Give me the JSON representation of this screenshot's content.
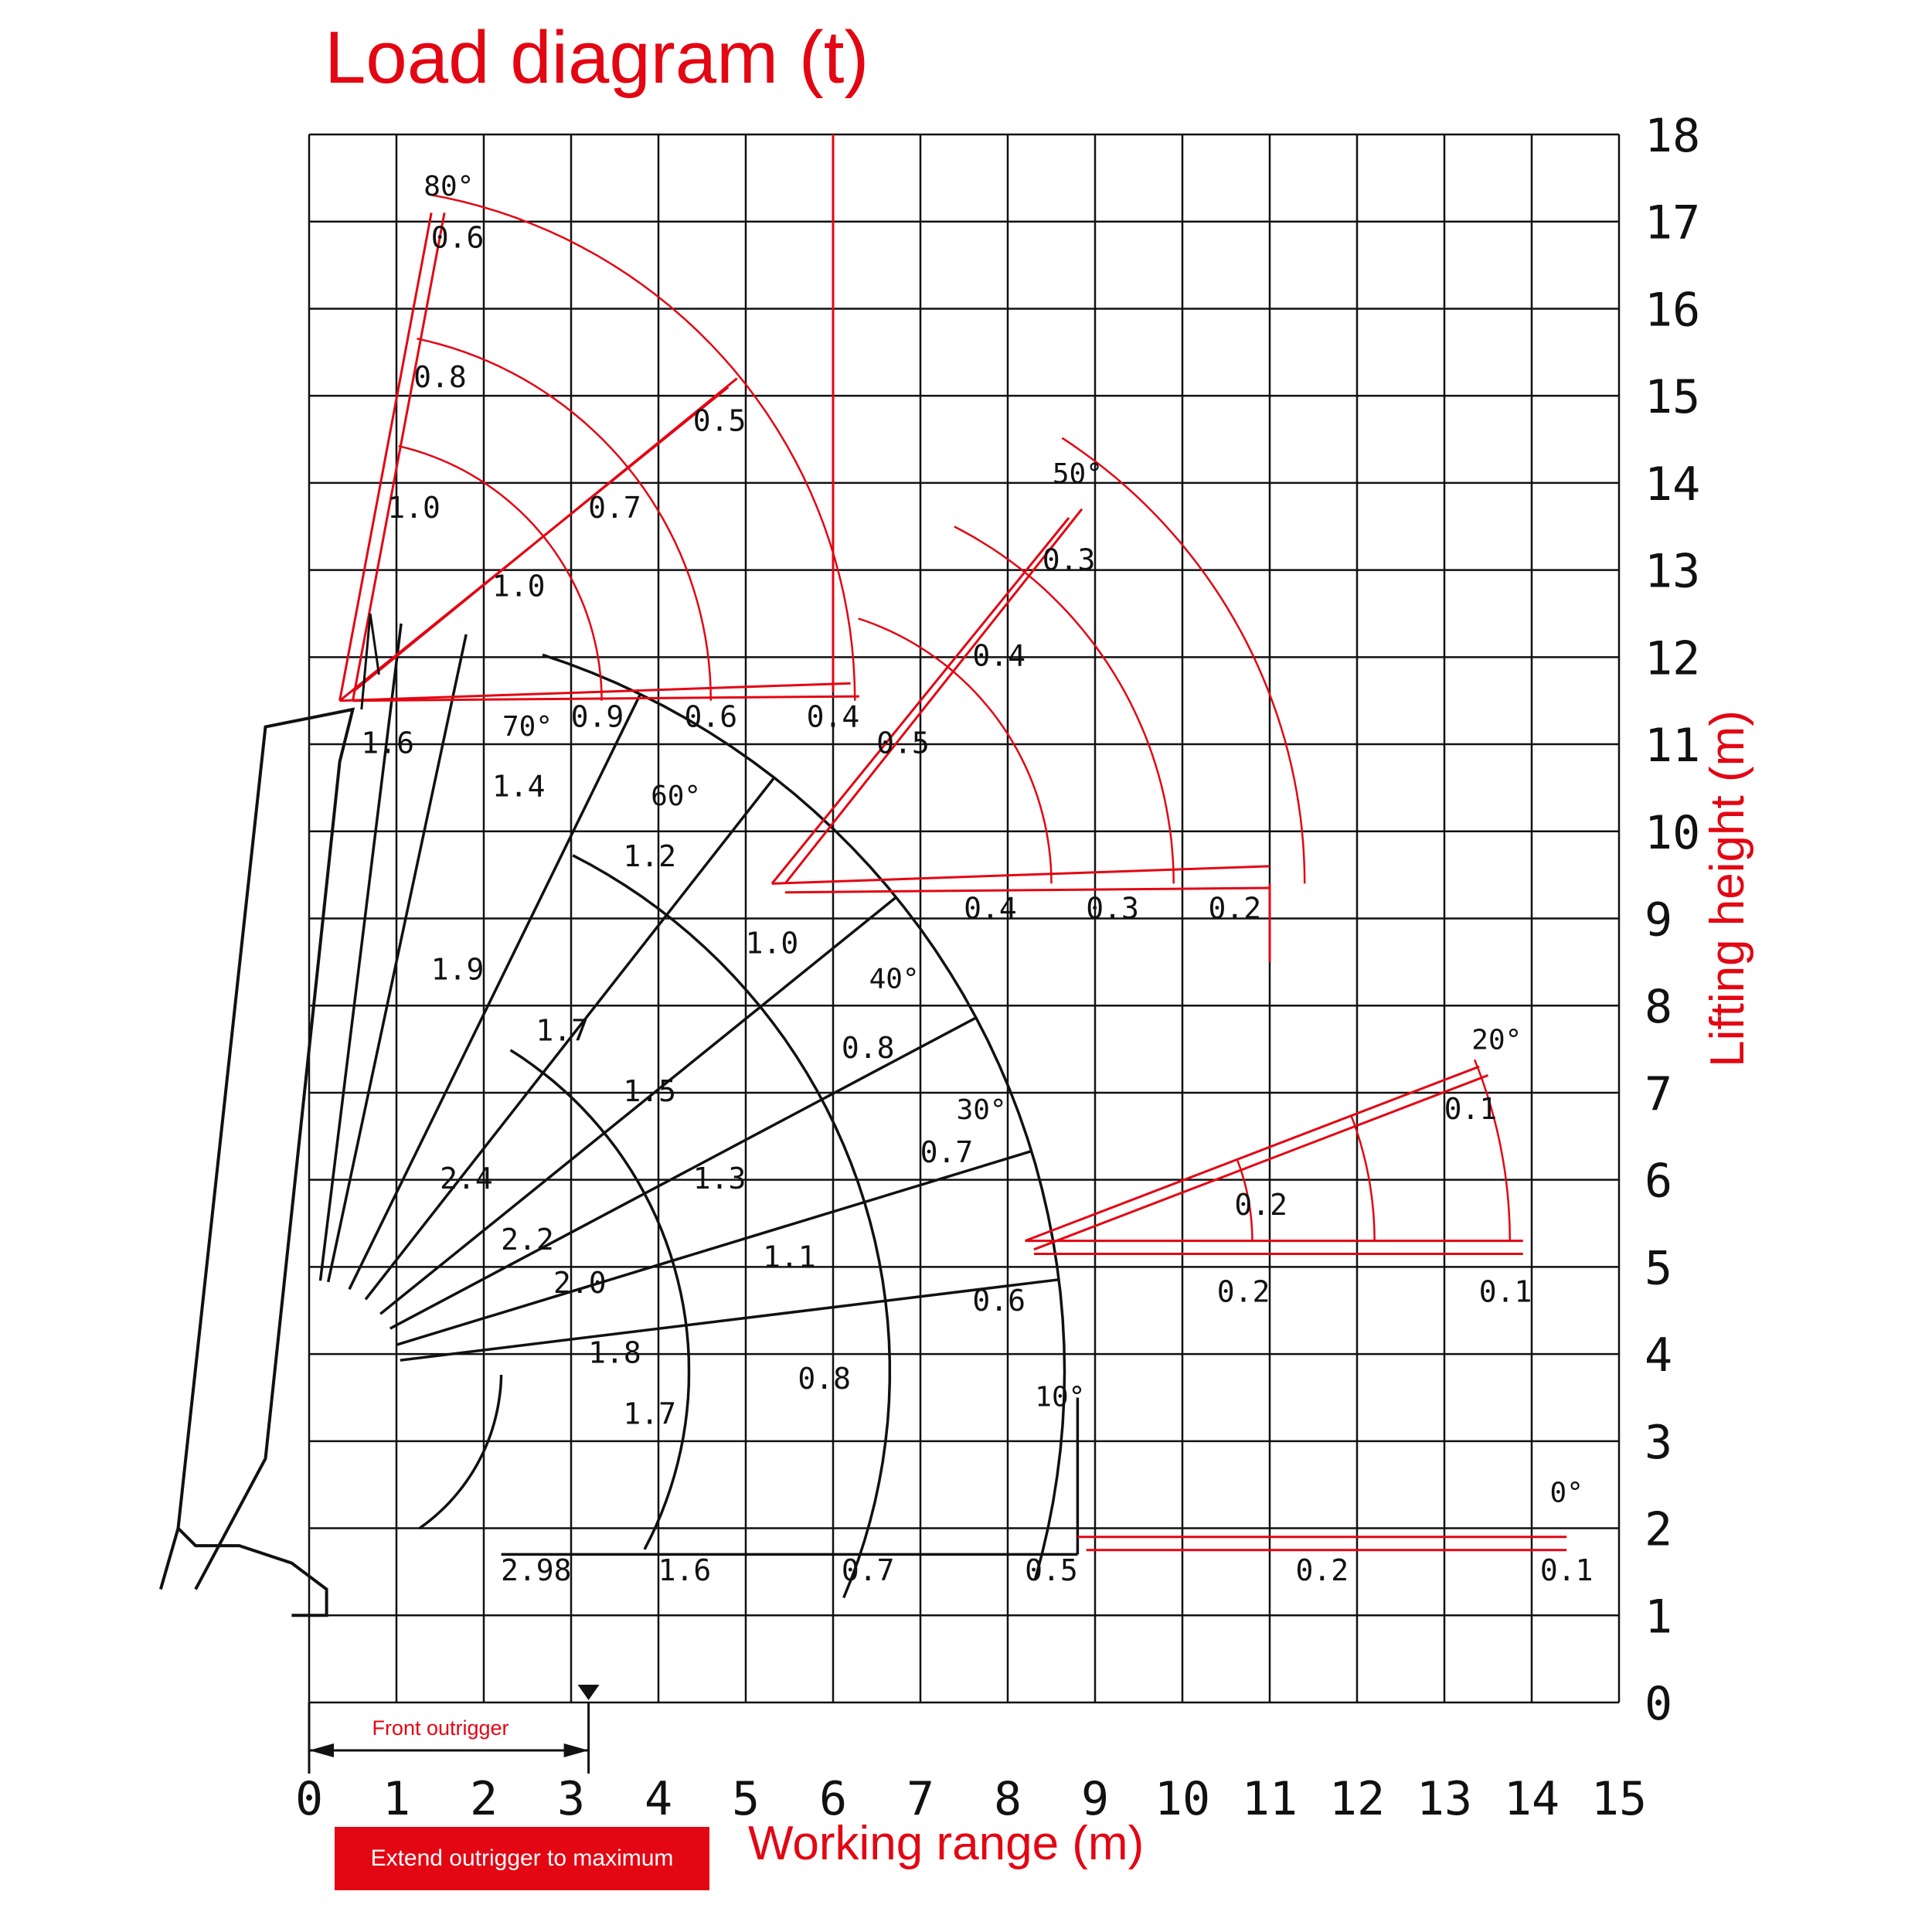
{
  "title": "Load diagram (t)",
  "xlabel": "Working range (m)",
  "ylabel": "Lifting height (m)",
  "badge": "Extend outrigger to maximum",
  "outrigger_label": "Front outrigger",
  "colors": {
    "red": "#e30613",
    "black": "#111111"
  },
  "chart_data": {
    "type": "line",
    "xlim": [
      0,
      15
    ],
    "ylim": [
      0,
      18
    ],
    "x_ticks": [
      "0",
      "1",
      "2",
      "3",
      "4",
      "5",
      "6",
      "7",
      "8",
      "9",
      "10",
      "11",
      "12",
      "13",
      "14",
      "15"
    ],
    "y_ticks": [
      "0",
      "1",
      "2",
      "3",
      "4",
      "5",
      "6",
      "7",
      "8",
      "9",
      "10",
      "11",
      "12",
      "13",
      "14",
      "15",
      "16",
      "17",
      "18"
    ],
    "grid": true,
    "outrigger_extent_x": 3.2,
    "angle_labels": [
      {
        "text": "80°",
        "x": 1.6,
        "y": 17.3
      },
      {
        "text": "70°",
        "x": 2.5,
        "y": 11.1
      },
      {
        "text": "60°",
        "x": 4.2,
        "y": 10.3
      },
      {
        "text": "50°",
        "x": 8.8,
        "y": 14.0
      },
      {
        "text": "40°",
        "x": 6.7,
        "y": 8.2
      },
      {
        "text": "30°",
        "x": 7.7,
        "y": 6.7
      },
      {
        "text": "20°",
        "x": 13.6,
        "y": 7.5
      },
      {
        "text": "10°",
        "x": 8.6,
        "y": 3.4
      },
      {
        "text": "0°",
        "x": 14.4,
        "y": 2.3
      }
    ],
    "black_load_labels": [
      {
        "text": "1.6",
        "x": 0.9,
        "y": 10.9
      },
      {
        "text": "1.4",
        "x": 2.4,
        "y": 10.4
      },
      {
        "text": "1.2",
        "x": 3.9,
        "y": 9.6
      },
      {
        "text": "1.0",
        "x": 5.3,
        "y": 8.6
      },
      {
        "text": "1.9",
        "x": 1.7,
        "y": 8.3
      },
      {
        "text": "1.7",
        "x": 2.9,
        "y": 7.6
      },
      {
        "text": "0.8",
        "x": 6.4,
        "y": 7.4
      },
      {
        "text": "1.5",
        "x": 3.9,
        "y": 6.9
      },
      {
        "text": "0.7",
        "x": 7.3,
        "y": 6.2
      },
      {
        "text": "1.3",
        "x": 4.7,
        "y": 5.9
      },
      {
        "text": "2.4",
        "x": 1.8,
        "y": 5.9
      },
      {
        "text": "2.2",
        "x": 2.5,
        "y": 5.2
      },
      {
        "text": "1.1",
        "x": 5.5,
        "y": 5.0
      },
      {
        "text": "2.0",
        "x": 3.1,
        "y": 4.7
      },
      {
        "text": "0.6",
        "x": 7.9,
        "y": 4.5
      },
      {
        "text": "1.8",
        "x": 3.5,
        "y": 3.9
      },
      {
        "text": "0.8",
        "x": 5.9,
        "y": 3.6
      },
      {
        "text": "1.7",
        "x": 3.9,
        "y": 3.2
      },
      {
        "text": "2.98",
        "x": 2.6,
        "y": 1.4
      },
      {
        "text": "1.6",
        "x": 4.3,
        "y": 1.4
      },
      {
        "text": "0.7",
        "x": 6.4,
        "y": 1.4
      },
      {
        "text": "0.5",
        "x": 8.5,
        "y": 1.4
      }
    ],
    "red_load_labels": [
      {
        "text": "0.6",
        "x": 1.7,
        "y": 16.7
      },
      {
        "text": "0.8",
        "x": 1.5,
        "y": 15.1
      },
      {
        "text": "0.5",
        "x": 4.7,
        "y": 14.6
      },
      {
        "text": "0.7",
        "x": 3.5,
        "y": 13.6
      },
      {
        "text": "1.0",
        "x": 1.2,
        "y": 13.6
      },
      {
        "text": "1.0",
        "x": 2.4,
        "y": 12.7
      },
      {
        "text": "0.3",
        "x": 8.7,
        "y": 13.0
      },
      {
        "text": "0.4",
        "x": 7.9,
        "y": 11.9
      },
      {
        "text": "0.9",
        "x": 3.3,
        "y": 11.2
      },
      {
        "text": "0.6",
        "x": 4.6,
        "y": 11.2
      },
      {
        "text": "0.4",
        "x": 6.0,
        "y": 11.2
      },
      {
        "text": "0.5",
        "x": 6.8,
        "y": 10.9
      },
      {
        "text": "0.4",
        "x": 7.8,
        "y": 9.0
      },
      {
        "text": "0.3",
        "x": 9.2,
        "y": 9.0
      },
      {
        "text": "0.2",
        "x": 10.6,
        "y": 9.0
      },
      {
        "text": "0.1",
        "x": 13.3,
        "y": 6.7
      },
      {
        "text": "0.2",
        "x": 10.9,
        "y": 5.6
      },
      {
        "text": "0.2",
        "x": 10.7,
        "y": 4.6
      },
      {
        "text": "0.1",
        "x": 13.7,
        "y": 4.6
      },
      {
        "text": "0.2",
        "x": 11.6,
        "y": 1.4
      },
      {
        "text": "0.1",
        "x": 14.4,
        "y": 1.4
      }
    ]
  }
}
